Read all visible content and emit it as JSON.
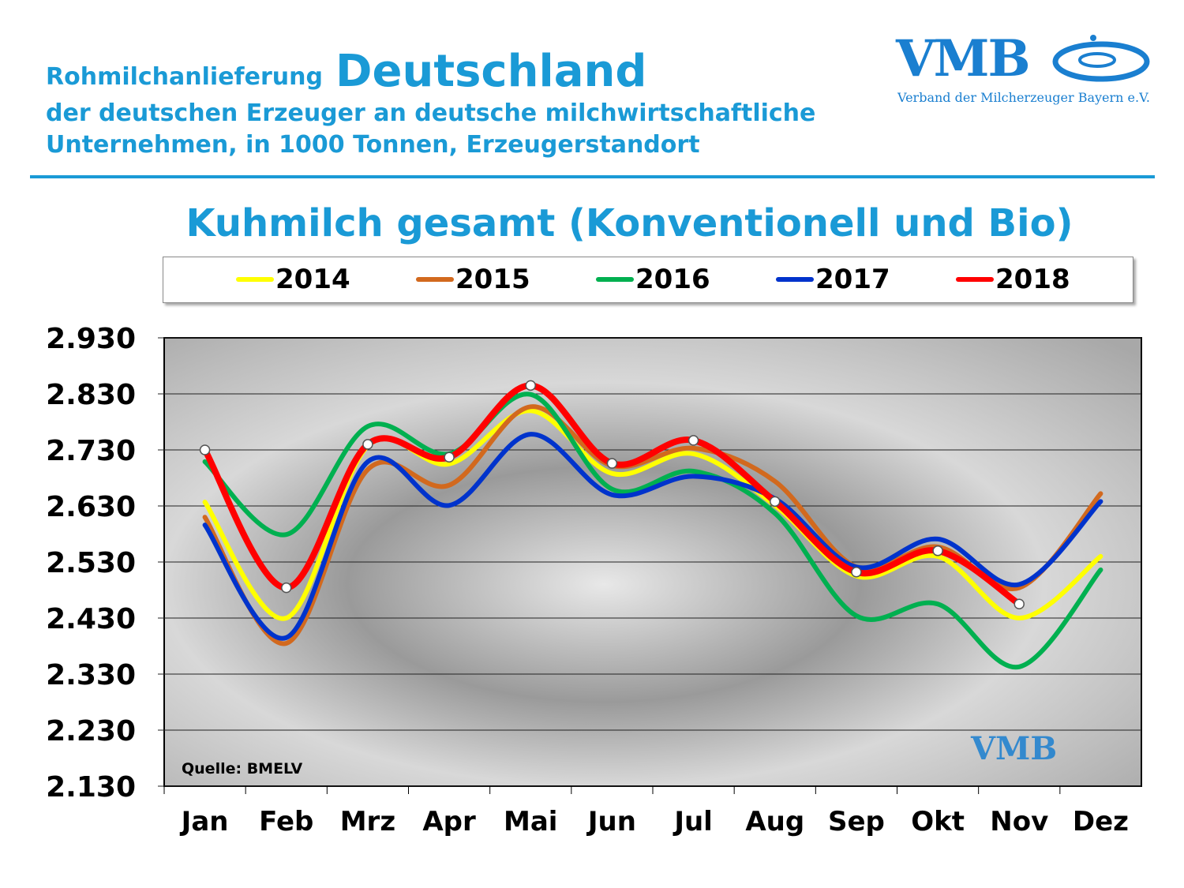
{
  "header": {
    "line1_small": "Rohmilchanlieferung",
    "line1_big": "Deutschland",
    "line2": "der deutschen Erzeuger an deutsche milchwirtschaftliche",
    "line3": "Unternehmen, in 1000 Tonnen, Erzeugerstandort"
  },
  "logo": {
    "text": "VMB",
    "subtitle": "Verband der Milcherzeuger Bayern e.V."
  },
  "chart_data": {
    "type": "line",
    "title": "Kuhmilch gesamt (Konventionell und Bio)",
    "source": "Quelle: BMELV",
    "categories": [
      "Jan",
      "Feb",
      "Mrz",
      "Apr",
      "Mai",
      "Jun",
      "Jul",
      "Aug",
      "Sep",
      "Okt",
      "Nov",
      "Dez"
    ],
    "yticks": [
      "2.930",
      "2.830",
      "2.730",
      "2.630",
      "2.530",
      "2.430",
      "2.330",
      "2.230",
      "2.130"
    ],
    "ylim": [
      2130,
      2930
    ],
    "grid": true,
    "legend_position": "top",
    "series": [
      {
        "name": "2014",
        "color": "#ffff00",
        "values": [
          2637,
          2430,
          2737,
          2705,
          2800,
          2688,
          2723,
          2631,
          2505,
          2540,
          2430,
          2540
        ]
      },
      {
        "name": "2015",
        "color": "#d2691e",
        "values": [
          2610,
          2385,
          2695,
          2667,
          2807,
          2702,
          2733,
          2674,
          2521,
          2557,
          2484,
          2652
        ]
      },
      {
        "name": "2016",
        "color": "#00b050",
        "values": [
          2709,
          2579,
          2772,
          2723,
          2829,
          2660,
          2692,
          2617,
          2434,
          2455,
          2343,
          2516
        ]
      },
      {
        "name": "2017",
        "color": "#0033cc",
        "values": [
          2596,
          2395,
          2709,
          2631,
          2758,
          2650,
          2683,
          2643,
          2521,
          2571,
          2490,
          2638
        ]
      },
      {
        "name": "2018",
        "color": "#ff0000",
        "markers": true,
        "values": [
          2730,
          2484,
          2740,
          2717,
          2845,
          2706,
          2747,
          2638,
          2512,
          2550,
          2455,
          null
        ]
      }
    ]
  }
}
